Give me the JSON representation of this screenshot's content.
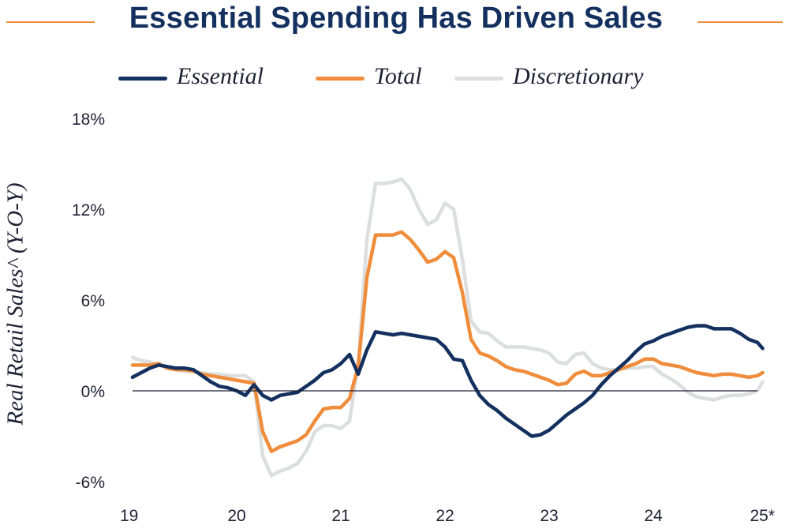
{
  "chart_data": {
    "type": "line",
    "title": "Essential Spending Has Driven Sales",
    "ylabel": "Real Retail Sales^ (Y-O-Y)",
    "xlabel": "",
    "x_ticks": [
      "19",
      "20",
      "21",
      "22",
      "23",
      "24",
      "25*"
    ],
    "y_ticks": [
      "18%",
      "12%",
      "6%",
      "0%",
      "-6%"
    ],
    "ylim": [
      -6,
      18
    ],
    "xlim": [
      2019,
      2025
    ],
    "legend_position": "top",
    "grid": false,
    "zero_line": true,
    "series": [
      {
        "name": "Essential",
        "color": "#13305f",
        "points": [
          [
            2019.0,
            0.9
          ],
          [
            2019.083,
            1.2
          ],
          [
            2019.167,
            1.5
          ],
          [
            2019.25,
            1.7
          ],
          [
            2019.333,
            1.6
          ],
          [
            2019.417,
            1.5
          ],
          [
            2019.5,
            1.5
          ],
          [
            2019.583,
            1.4
          ],
          [
            2019.667,
            1.0
          ],
          [
            2019.75,
            0.6
          ],
          [
            2019.833,
            0.3
          ],
          [
            2019.917,
            0.2
          ],
          [
            2020.0,
            0.0
          ],
          [
            2020.083,
            -0.3
          ],
          [
            2020.167,
            0.4
          ],
          [
            2020.25,
            -0.3
          ],
          [
            2020.333,
            -0.6
          ],
          [
            2020.417,
            -0.3
          ],
          [
            2020.5,
            -0.2
          ],
          [
            2020.583,
            -0.1
          ],
          [
            2020.667,
            0.3
          ],
          [
            2020.75,
            0.7
          ],
          [
            2020.833,
            1.2
          ],
          [
            2020.917,
            1.4
          ],
          [
            2021.0,
            1.8
          ],
          [
            2021.083,
            2.4
          ],
          [
            2021.167,
            1.1
          ],
          [
            2021.25,
            2.7
          ],
          [
            2021.333,
            3.9
          ],
          [
            2021.417,
            3.8
          ],
          [
            2021.5,
            3.7
          ],
          [
            2021.583,
            3.8
          ],
          [
            2021.667,
            3.7
          ],
          [
            2021.75,
            3.6
          ],
          [
            2021.833,
            3.5
          ],
          [
            2021.917,
            3.4
          ],
          [
            2022.0,
            2.9
          ],
          [
            2022.083,
            2.1
          ],
          [
            2022.167,
            2.0
          ],
          [
            2022.25,
            0.7
          ],
          [
            2022.333,
            -0.3
          ],
          [
            2022.417,
            -0.9
          ],
          [
            2022.5,
            -1.3
          ],
          [
            2022.583,
            -1.8
          ],
          [
            2022.667,
            -2.2
          ],
          [
            2022.75,
            -2.6
          ],
          [
            2022.833,
            -3.0
          ],
          [
            2022.917,
            -2.9
          ],
          [
            2023.0,
            -2.6
          ],
          [
            2023.083,
            -2.1
          ],
          [
            2023.167,
            -1.6
          ],
          [
            2023.25,
            -1.2
          ],
          [
            2023.333,
            -0.8
          ],
          [
            2023.417,
            -0.3
          ],
          [
            2023.5,
            0.4
          ],
          [
            2023.583,
            1.0
          ],
          [
            2023.667,
            1.5
          ],
          [
            2023.75,
            2.0
          ],
          [
            2023.833,
            2.6
          ],
          [
            2023.917,
            3.1
          ],
          [
            2024.0,
            3.3
          ],
          [
            2024.083,
            3.6
          ],
          [
            2024.167,
            3.8
          ],
          [
            2024.25,
            4.0
          ],
          [
            2024.333,
            4.2
          ],
          [
            2024.417,
            4.3
          ],
          [
            2024.5,
            4.3
          ],
          [
            2024.583,
            4.1
          ],
          [
            2024.667,
            4.1
          ],
          [
            2024.75,
            4.1
          ],
          [
            2024.833,
            3.8
          ],
          [
            2024.917,
            3.4
          ],
          [
            2025.0,
            3.2
          ],
          [
            2025.05,
            2.8
          ]
        ]
      },
      {
        "name": "Total",
        "color": "#ef8d3c",
        "points": [
          [
            2019.0,
            1.7
          ],
          [
            2019.083,
            1.7
          ],
          [
            2019.167,
            1.7
          ],
          [
            2019.25,
            1.8
          ],
          [
            2019.333,
            1.5
          ],
          [
            2019.417,
            1.4
          ],
          [
            2019.5,
            1.4
          ],
          [
            2019.583,
            1.3
          ],
          [
            2019.667,
            1.1
          ],
          [
            2019.75,
            1.0
          ],
          [
            2019.833,
            0.9
          ],
          [
            2019.917,
            0.8
          ],
          [
            2020.0,
            0.7
          ],
          [
            2020.083,
            0.6
          ],
          [
            2020.167,
            0.5
          ],
          [
            2020.25,
            -2.7
          ],
          [
            2020.333,
            -4.0
          ],
          [
            2020.417,
            -3.7
          ],
          [
            2020.5,
            -3.5
          ],
          [
            2020.583,
            -3.3
          ],
          [
            2020.667,
            -2.9
          ],
          [
            2020.75,
            -2.0
          ],
          [
            2020.833,
            -1.2
          ],
          [
            2020.917,
            -1.1
          ],
          [
            2021.0,
            -1.1
          ],
          [
            2021.083,
            -0.5
          ],
          [
            2021.167,
            1.6
          ],
          [
            2021.25,
            7.5
          ],
          [
            2021.333,
            10.3
          ],
          [
            2021.417,
            10.3
          ],
          [
            2021.5,
            10.3
          ],
          [
            2021.583,
            10.5
          ],
          [
            2021.667,
            10.0
          ],
          [
            2021.75,
            9.3
          ],
          [
            2021.833,
            8.5
          ],
          [
            2021.917,
            8.7
          ],
          [
            2022.0,
            9.2
          ],
          [
            2022.083,
            8.8
          ],
          [
            2022.167,
            6.5
          ],
          [
            2022.25,
            3.4
          ],
          [
            2022.333,
            2.5
          ],
          [
            2022.417,
            2.3
          ],
          [
            2022.5,
            2.0
          ],
          [
            2022.583,
            1.6
          ],
          [
            2022.667,
            1.4
          ],
          [
            2022.75,
            1.3
          ],
          [
            2022.833,
            1.1
          ],
          [
            2022.917,
            0.9
          ],
          [
            2023.0,
            0.7
          ],
          [
            2023.083,
            0.4
          ],
          [
            2023.167,
            0.5
          ],
          [
            2023.25,
            1.1
          ],
          [
            2023.333,
            1.3
          ],
          [
            2023.417,
            1.0
          ],
          [
            2023.5,
            1.0
          ],
          [
            2023.583,
            1.2
          ],
          [
            2023.667,
            1.4
          ],
          [
            2023.75,
            1.6
          ],
          [
            2023.833,
            1.8
          ],
          [
            2023.917,
            2.1
          ],
          [
            2024.0,
            2.1
          ],
          [
            2024.083,
            1.8
          ],
          [
            2024.167,
            1.7
          ],
          [
            2024.25,
            1.6
          ],
          [
            2024.333,
            1.4
          ],
          [
            2024.417,
            1.2
          ],
          [
            2024.5,
            1.1
          ],
          [
            2024.583,
            1.0
          ],
          [
            2024.667,
            1.1
          ],
          [
            2024.75,
            1.1
          ],
          [
            2024.833,
            1.0
          ],
          [
            2024.917,
            0.9
          ],
          [
            2025.0,
            1.0
          ],
          [
            2025.05,
            1.2
          ]
        ]
      },
      {
        "name": "Discretionary",
        "color": "#dcdedf",
        "points": [
          [
            2019.0,
            2.2
          ],
          [
            2019.083,
            2.0
          ],
          [
            2019.167,
            1.9
          ],
          [
            2019.25,
            1.7
          ],
          [
            2019.333,
            1.6
          ],
          [
            2019.417,
            1.4
          ],
          [
            2019.5,
            1.3
          ],
          [
            2019.583,
            1.3
          ],
          [
            2019.667,
            1.2
          ],
          [
            2019.75,
            1.1
          ],
          [
            2019.833,
            1.1
          ],
          [
            2019.917,
            1.0
          ],
          [
            2020.0,
            1.0
          ],
          [
            2020.083,
            1.0
          ],
          [
            2020.167,
            0.6
          ],
          [
            2020.25,
            -4.3
          ],
          [
            2020.333,
            -5.6
          ],
          [
            2020.417,
            -5.3
          ],
          [
            2020.5,
            -5.1
          ],
          [
            2020.583,
            -4.8
          ],
          [
            2020.667,
            -4.0
          ],
          [
            2020.75,
            -2.7
          ],
          [
            2020.833,
            -2.3
          ],
          [
            2020.917,
            -2.3
          ],
          [
            2021.0,
            -2.5
          ],
          [
            2021.083,
            -2.0
          ],
          [
            2021.167,
            1.8
          ],
          [
            2021.25,
            10.0
          ],
          [
            2021.333,
            13.7
          ],
          [
            2021.417,
            13.7
          ],
          [
            2021.5,
            13.8
          ],
          [
            2021.583,
            14.0
          ],
          [
            2021.667,
            13.3
          ],
          [
            2021.75,
            12.0
          ],
          [
            2021.833,
            11.0
          ],
          [
            2021.917,
            11.3
          ],
          [
            2022.0,
            12.4
          ],
          [
            2022.083,
            12.0
          ],
          [
            2022.167,
            8.7
          ],
          [
            2022.25,
            4.6
          ],
          [
            2022.333,
            3.9
          ],
          [
            2022.417,
            3.8
          ],
          [
            2022.5,
            3.3
          ],
          [
            2022.583,
            2.9
          ],
          [
            2022.667,
            2.9
          ],
          [
            2022.75,
            2.9
          ],
          [
            2022.833,
            2.8
          ],
          [
            2022.917,
            2.7
          ],
          [
            2023.0,
            2.5
          ],
          [
            2023.083,
            1.9
          ],
          [
            2023.167,
            1.8
          ],
          [
            2023.25,
            2.4
          ],
          [
            2023.333,
            2.5
          ],
          [
            2023.417,
            1.8
          ],
          [
            2023.5,
            1.5
          ],
          [
            2023.583,
            1.4
          ],
          [
            2023.667,
            1.4
          ],
          [
            2023.75,
            1.5
          ],
          [
            2023.833,
            1.5
          ],
          [
            2023.917,
            1.6
          ],
          [
            2024.0,
            1.6
          ],
          [
            2024.083,
            1.1
          ],
          [
            2024.167,
            0.8
          ],
          [
            2024.25,
            0.4
          ],
          [
            2024.333,
            -0.1
          ],
          [
            2024.417,
            -0.4
          ],
          [
            2024.5,
            -0.5
          ],
          [
            2024.583,
            -0.6
          ],
          [
            2024.667,
            -0.4
          ],
          [
            2024.75,
            -0.3
          ],
          [
            2024.833,
            -0.3
          ],
          [
            2024.917,
            -0.2
          ],
          [
            2025.0,
            0.0
          ],
          [
            2025.05,
            0.6
          ]
        ]
      }
    ]
  }
}
